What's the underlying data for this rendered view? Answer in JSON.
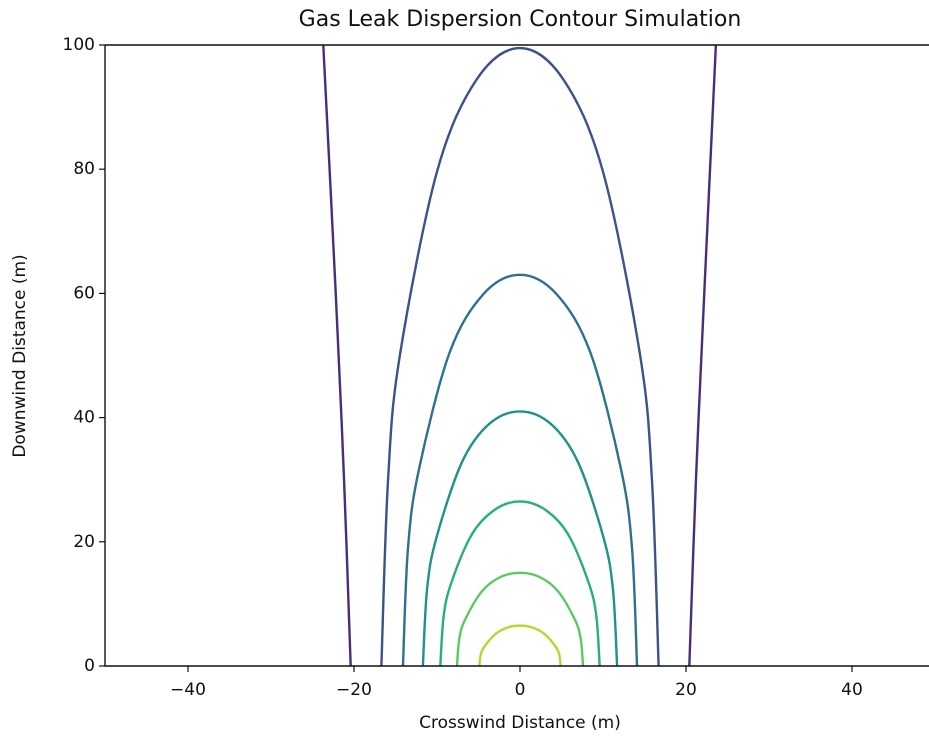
{
  "chart_data": {
    "type": "contour",
    "title": "Gas Leak Dispersion Contour Simulation",
    "xlabel": "Crosswind Distance (m)",
    "ylabel": "Downwind Distance (m)",
    "xlim": [
      -50,
      50
    ],
    "ylim": [
      0,
      100
    ],
    "xticks": [
      {
        "value": -40,
        "label": "−40"
      },
      {
        "value": -20,
        "label": "−20"
      },
      0,
      20,
      40
    ],
    "yticks": [
      0,
      20,
      40,
      60,
      80,
      100
    ],
    "series": [
      {
        "color": "#472d7b",
        "x": [
          -20.4,
          -21.2,
          -22.2,
          -23.7
        ],
        "values": [
          0,
          30,
          60,
          100
        ]
      },
      {
        "color": "#472d7b",
        "x": [
          20.4,
          21.2,
          22.2,
          23.6
        ],
        "values": [
          0,
          30,
          60,
          100
        ]
      },
      {
        "color": "#3b528b",
        "x": [
          -16.7,
          -15.9,
          -14.5,
          -10,
          -5.2,
          0,
          5.2,
          10,
          14.5,
          15.9,
          16.7
        ],
        "values": [
          0,
          29.9,
          49.8,
          79.6,
          94.5,
          99.5,
          94.5,
          79.6,
          49.8,
          29.9,
          0
        ]
      },
      {
        "color": "#2c728e",
        "x": [
          -14.1,
          -13.5,
          -12.2,
          -8.5,
          -4.4,
          0,
          4.4,
          8.5,
          12.2,
          13.5,
          14.1
        ],
        "values": [
          0,
          18.9,
          31.5,
          50.4,
          59.9,
          63,
          59.9,
          50.4,
          31.5,
          18.9,
          0
        ]
      },
      {
        "color": "#21918c",
        "x": [
          -11.7,
          -11.2,
          -10.1,
          -7,
          -3.7,
          0,
          3.7,
          7,
          10.1,
          11.2,
          11.7
        ],
        "values": [
          0,
          12.3,
          20.5,
          32.8,
          39,
          41,
          39,
          32.8,
          20.5,
          12.3,
          0
        ]
      },
      {
        "color": "#28ae80",
        "x": [
          -9.6,
          -9.2,
          -8.3,
          -5.8,
          -3,
          0,
          3,
          5.8,
          8.3,
          9.2,
          9.6
        ],
        "values": [
          0,
          8,
          13.3,
          21.2,
          25.2,
          26.5,
          25.2,
          21.2,
          13.3,
          8,
          0
        ]
      },
      {
        "color": "#5ec962",
        "x": [
          -7.6,
          -7.3,
          -6.6,
          -4.6,
          -2.4,
          0,
          2.4,
          4.6,
          6.6,
          7.3,
          7.6
        ],
        "values": [
          0,
          4.5,
          7.5,
          12,
          14.3,
          15,
          14.3,
          12,
          7.5,
          4.5,
          0
        ]
      },
      {
        "color": "#addc30",
        "x": [
          -4.9,
          -4.7,
          -4.2,
          -2.9,
          -1.5,
          0,
          1.5,
          2.9,
          4.2,
          4.7,
          4.9
        ],
        "values": [
          0,
          2,
          3.3,
          5.2,
          6.2,
          6.5,
          6.2,
          5.2,
          3.3,
          2,
          0
        ]
      }
    ]
  }
}
